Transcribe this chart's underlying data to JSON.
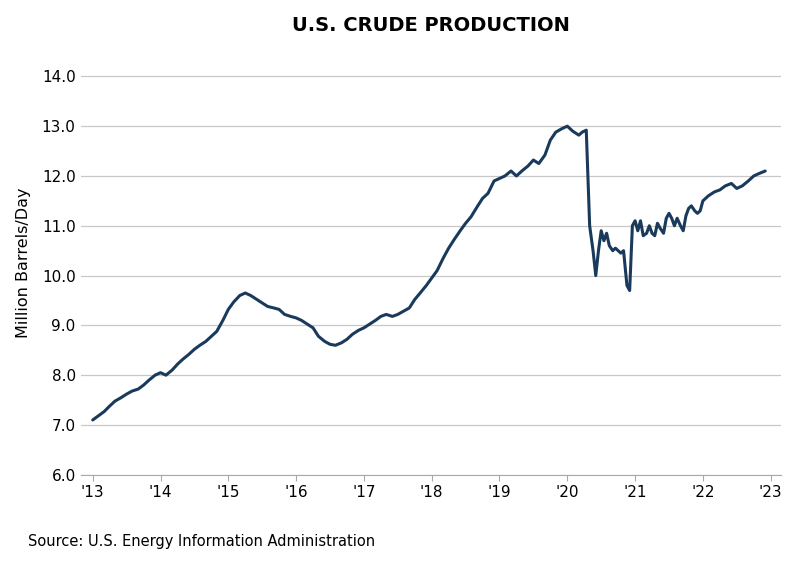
{
  "title": "U.S. CRUDE PRODUCTION",
  "ylabel": "Million Barrels/Day",
  "source": "Source: U.S. Energy Information Administration",
  "line_color": "#1a3a5c",
  "line_width": 2.2,
  "background_color": "#ffffff",
  "ylim": [
    6.0,
    14.5
  ],
  "yticks": [
    6.0,
    7.0,
    8.0,
    9.0,
    10.0,
    11.0,
    12.0,
    13.0,
    14.0
  ],
  "grid_color": "#c8c8c8",
  "x_tick_labels": [
    "'13",
    "'14",
    "'15",
    "'16",
    "'17",
    "'18",
    "'19",
    "'20",
    "'21",
    "'22",
    "'23"
  ],
  "x_tick_positions": [
    2013.0,
    2014.0,
    2015.0,
    2016.0,
    2017.0,
    2018.0,
    2019.0,
    2020.0,
    2021.0,
    2022.0,
    2023.0
  ],
  "data": [
    [
      2013.0,
      7.1
    ],
    [
      2013.08,
      7.18
    ],
    [
      2013.17,
      7.27
    ],
    [
      2013.25,
      7.38
    ],
    [
      2013.33,
      7.48
    ],
    [
      2013.42,
      7.55
    ],
    [
      2013.5,
      7.62
    ],
    [
      2013.58,
      7.68
    ],
    [
      2013.67,
      7.72
    ],
    [
      2013.75,
      7.8
    ],
    [
      2013.83,
      7.9
    ],
    [
      2013.92,
      8.0
    ],
    [
      2014.0,
      8.05
    ],
    [
      2014.08,
      8.0
    ],
    [
      2014.17,
      8.1
    ],
    [
      2014.25,
      8.22
    ],
    [
      2014.33,
      8.32
    ],
    [
      2014.42,
      8.42
    ],
    [
      2014.5,
      8.52
    ],
    [
      2014.58,
      8.6
    ],
    [
      2014.67,
      8.68
    ],
    [
      2014.75,
      8.78
    ],
    [
      2014.83,
      8.88
    ],
    [
      2014.92,
      9.1
    ],
    [
      2015.0,
      9.32
    ],
    [
      2015.08,
      9.47
    ],
    [
      2015.17,
      9.6
    ],
    [
      2015.25,
      9.65
    ],
    [
      2015.33,
      9.6
    ],
    [
      2015.42,
      9.52
    ],
    [
      2015.5,
      9.45
    ],
    [
      2015.58,
      9.38
    ],
    [
      2015.67,
      9.35
    ],
    [
      2015.75,
      9.32
    ],
    [
      2015.83,
      9.22
    ],
    [
      2015.92,
      9.18
    ],
    [
      2016.0,
      9.15
    ],
    [
      2016.08,
      9.1
    ],
    [
      2016.17,
      9.02
    ],
    [
      2016.25,
      8.95
    ],
    [
      2016.33,
      8.78
    ],
    [
      2016.42,
      8.68
    ],
    [
      2016.5,
      8.62
    ],
    [
      2016.58,
      8.6
    ],
    [
      2016.67,
      8.65
    ],
    [
      2016.75,
      8.72
    ],
    [
      2016.83,
      8.82
    ],
    [
      2016.92,
      8.9
    ],
    [
      2017.0,
      8.95
    ],
    [
      2017.08,
      9.02
    ],
    [
      2017.17,
      9.1
    ],
    [
      2017.25,
      9.18
    ],
    [
      2017.33,
      9.22
    ],
    [
      2017.42,
      9.18
    ],
    [
      2017.5,
      9.22
    ],
    [
      2017.58,
      9.28
    ],
    [
      2017.67,
      9.35
    ],
    [
      2017.75,
      9.52
    ],
    [
      2017.83,
      9.65
    ],
    [
      2017.92,
      9.8
    ],
    [
      2018.0,
      9.95
    ],
    [
      2018.08,
      10.1
    ],
    [
      2018.17,
      10.35
    ],
    [
      2018.25,
      10.55
    ],
    [
      2018.33,
      10.72
    ],
    [
      2018.42,
      10.9
    ],
    [
      2018.5,
      11.05
    ],
    [
      2018.58,
      11.18
    ],
    [
      2018.67,
      11.38
    ],
    [
      2018.75,
      11.55
    ],
    [
      2018.83,
      11.65
    ],
    [
      2018.92,
      11.9
    ],
    [
      2019.0,
      11.95
    ],
    [
      2019.08,
      12.0
    ],
    [
      2019.17,
      12.1
    ],
    [
      2019.25,
      12.0
    ],
    [
      2019.33,
      12.1
    ],
    [
      2019.42,
      12.2
    ],
    [
      2019.5,
      12.32
    ],
    [
      2019.58,
      12.25
    ],
    [
      2019.67,
      12.42
    ],
    [
      2019.75,
      12.72
    ],
    [
      2019.83,
      12.88
    ],
    [
      2019.92,
      12.95
    ],
    [
      2020.0,
      13.0
    ],
    [
      2020.08,
      12.9
    ],
    [
      2020.17,
      12.82
    ],
    [
      2020.22,
      12.88
    ],
    [
      2020.28,
      12.92
    ],
    [
      2020.33,
      11.0
    ],
    [
      2020.38,
      10.5
    ],
    [
      2020.42,
      10.0
    ],
    [
      2020.46,
      10.5
    ],
    [
      2020.5,
      10.9
    ],
    [
      2020.54,
      10.7
    ],
    [
      2020.58,
      10.85
    ],
    [
      2020.62,
      10.6
    ],
    [
      2020.67,
      10.5
    ],
    [
      2020.71,
      10.55
    ],
    [
      2020.75,
      10.5
    ],
    [
      2020.79,
      10.45
    ],
    [
      2020.83,
      10.5
    ],
    [
      2020.88,
      9.8
    ],
    [
      2020.92,
      9.7
    ],
    [
      2020.96,
      11.0
    ],
    [
      2021.0,
      11.1
    ],
    [
      2021.04,
      10.9
    ],
    [
      2021.08,
      11.1
    ],
    [
      2021.12,
      10.8
    ],
    [
      2021.17,
      10.85
    ],
    [
      2021.21,
      11.0
    ],
    [
      2021.25,
      10.85
    ],
    [
      2021.29,
      10.8
    ],
    [
      2021.33,
      11.05
    ],
    [
      2021.37,
      10.95
    ],
    [
      2021.42,
      10.85
    ],
    [
      2021.46,
      11.15
    ],
    [
      2021.5,
      11.25
    ],
    [
      2021.54,
      11.15
    ],
    [
      2021.58,
      11.0
    ],
    [
      2021.62,
      11.15
    ],
    [
      2021.67,
      11.0
    ],
    [
      2021.71,
      10.9
    ],
    [
      2021.75,
      11.2
    ],
    [
      2021.79,
      11.35
    ],
    [
      2021.83,
      11.4
    ],
    [
      2021.88,
      11.3
    ],
    [
      2021.92,
      11.25
    ],
    [
      2021.96,
      11.3
    ],
    [
      2022.0,
      11.5
    ],
    [
      2022.08,
      11.6
    ],
    [
      2022.17,
      11.68
    ],
    [
      2022.25,
      11.72
    ],
    [
      2022.33,
      11.8
    ],
    [
      2022.42,
      11.85
    ],
    [
      2022.5,
      11.75
    ],
    [
      2022.58,
      11.8
    ],
    [
      2022.67,
      11.9
    ],
    [
      2022.75,
      12.0
    ],
    [
      2022.83,
      12.05
    ],
    [
      2022.92,
      12.1
    ]
  ]
}
